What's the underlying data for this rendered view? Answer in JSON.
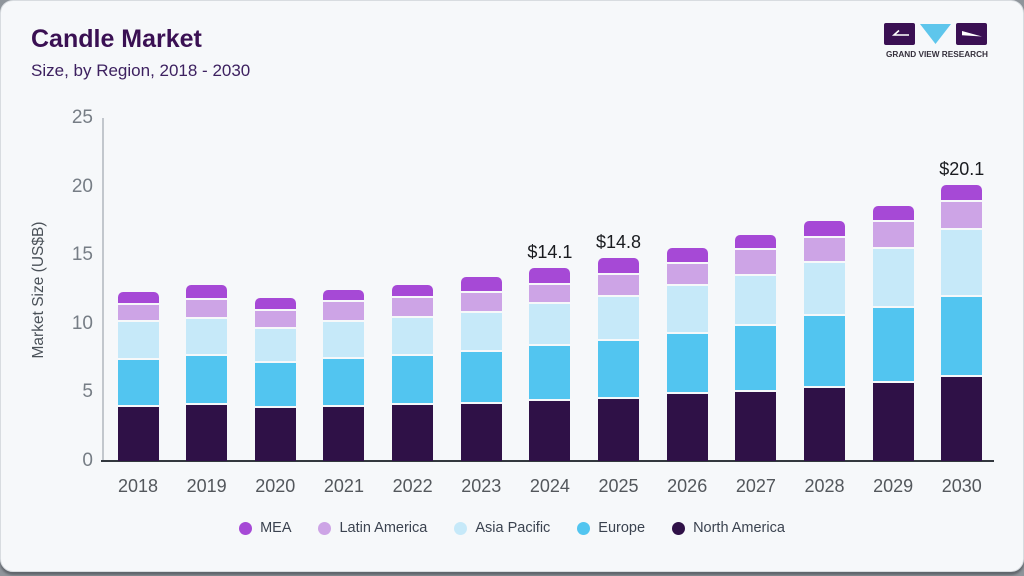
{
  "header": {
    "title": "Candle Market",
    "subtitle": "Size, by Region, 2018 - 2030",
    "logo_caption": "GRAND VIEW RESEARCH"
  },
  "colors": {
    "card_background": "#f6f8fa",
    "title_text": "#3a1053",
    "logo_purple": "#3a1053",
    "logo_blue": "#5ec6ec",
    "x_axis_line": "#33383e",
    "y_axis_line": "#c2c7cd"
  },
  "chart_data": {
    "type": "bar",
    "stacked": true,
    "title": "Candle Market",
    "subtitle": "Size, by Region, 2018 - 2030",
    "xlabel": "",
    "ylabel": "Market Size (US$B)",
    "ylim": [
      0,
      25
    ],
    "yticks": [
      0,
      5,
      10,
      15,
      20,
      25
    ],
    "grid": false,
    "legend_position": "bottom",
    "categories": [
      "2018",
      "2019",
      "2020",
      "2021",
      "2022",
      "2023",
      "2024",
      "2025",
      "2026",
      "2027",
      "2028",
      "2029",
      "2030"
    ],
    "series": [
      {
        "name": "MEA",
        "color": "#a649d6",
        "values": [
          0.8,
          0.9,
          0.8,
          0.8,
          0.8,
          1.0,
          1.1,
          1.1,
          1.0,
          1.0,
          1.1,
          1.0,
          1.1
        ]
      },
      {
        "name": "Latin America",
        "color": "#cda4e6",
        "values": [
          1.2,
          1.4,
          1.3,
          1.4,
          1.4,
          1.5,
          1.4,
          1.6,
          1.6,
          1.9,
          1.8,
          2.0,
          2.0
        ]
      },
      {
        "name": "Asia Pacific",
        "color": "#c6e9f9",
        "values": [
          2.8,
          2.7,
          2.5,
          2.7,
          2.8,
          2.8,
          3.1,
          3.2,
          3.5,
          3.6,
          3.9,
          4.3,
          4.9
        ]
      },
      {
        "name": "Europe",
        "color": "#52c5f0",
        "values": [
          3.4,
          3.6,
          3.3,
          3.5,
          3.6,
          3.8,
          4.0,
          4.2,
          4.4,
          4.8,
          5.2,
          5.5,
          5.8
        ]
      },
      {
        "name": "North America",
        "color": "#2f1147",
        "values": [
          4.1,
          4.2,
          4.0,
          4.1,
          4.2,
          4.3,
          4.5,
          4.7,
          5.0,
          5.2,
          5.5,
          5.8,
          6.3
        ]
      }
    ],
    "totals": [
      12.3,
      12.8,
      11.9,
      12.5,
      12.8,
      13.4,
      14.1,
      14.8,
      15.5,
      16.5,
      17.5,
      18.6,
      20.1
    ],
    "annotations": [
      {
        "category": "2024",
        "label": "$14.1"
      },
      {
        "category": "2025",
        "label": "$14.8"
      },
      {
        "category": "2030",
        "label": "$20.1"
      }
    ]
  }
}
